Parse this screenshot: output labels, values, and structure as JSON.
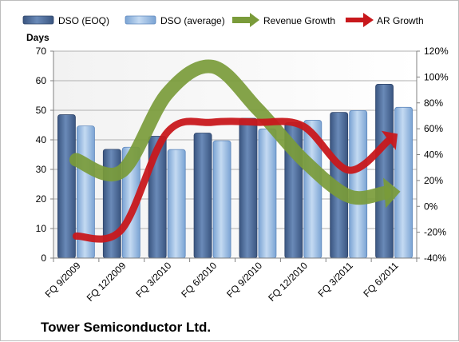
{
  "chart_data": {
    "type": "bar",
    "title": "",
    "company": "Tower Semiconductor Ltd.",
    "ylabel": "Days",
    "ylim": [
      0,
      70
    ],
    "yticks": [
      "0",
      "10",
      "20",
      "30",
      "40",
      "50",
      "60",
      "70"
    ],
    "y2lim": [
      -40,
      120
    ],
    "y2ticks": [
      "-40%",
      "-20%",
      "0%",
      "20%",
      "40%",
      "60%",
      "80%",
      "100%",
      "120%"
    ],
    "categories": [
      "FQ 9/2009",
      "FQ 12/2009",
      "FQ 3/2010",
      "FQ 6/2010",
      "FQ 9/2010",
      "FQ 12/2010",
      "FQ 3/2011",
      "FQ 6/2011"
    ],
    "legend_position": "top",
    "grid": true,
    "bar_series": [
      {
        "name": "DSO (EOQ)",
        "values": [
          48.5,
          36.8,
          41.2,
          42.3,
          47.3,
          45.8,
          49.3,
          58.8
        ],
        "color": "#4a6796"
      },
      {
        "name": "DSO (average)",
        "values": [
          44.7,
          37.5,
          36.7,
          39.7,
          43.7,
          46.6,
          49.9,
          51.0
        ],
        "color": "#8fb4df"
      }
    ],
    "line_series": [
      {
        "name": "Revenue Growth",
        "axis": "right",
        "values": [
          36,
          27,
          87,
          108,
          75,
          36,
          8,
          11
        ],
        "color": "#7a9b3a"
      },
      {
        "name": "AR Growth",
        "axis": "right",
        "values": [
          -23,
          -18,
          57,
          65,
          65,
          62,
          28,
          54
        ],
        "color": "#c8181c"
      }
    ]
  }
}
